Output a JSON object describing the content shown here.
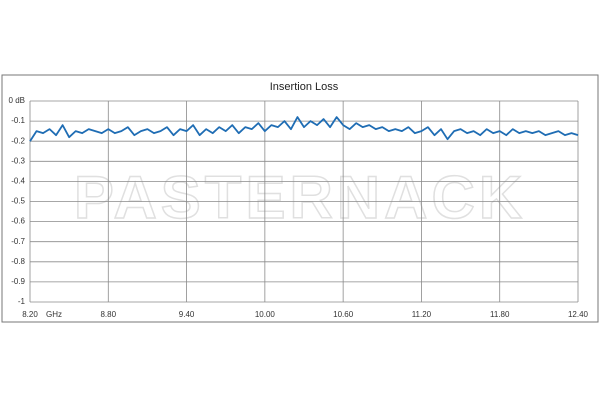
{
  "chart_data": {
    "type": "line",
    "title": "Insertion Loss",
    "watermark": "PASTERNACK",
    "x_label": "GHz",
    "x": [
      8.2,
      8.25,
      8.3,
      8.35,
      8.4,
      8.45,
      8.5,
      8.55,
      8.6,
      8.65,
      8.7,
      8.75,
      8.8,
      8.85,
      8.9,
      8.95,
      9.0,
      9.05,
      9.1,
      9.15,
      9.2,
      9.25,
      9.3,
      9.35,
      9.4,
      9.45,
      9.5,
      9.55,
      9.6,
      9.65,
      9.7,
      9.75,
      9.8,
      9.85,
      9.9,
      9.95,
      10.0,
      10.05,
      10.1,
      10.15,
      10.2,
      10.25,
      10.3,
      10.35,
      10.4,
      10.45,
      10.5,
      10.55,
      10.6,
      10.65,
      10.7,
      10.75,
      10.8,
      10.85,
      10.9,
      10.95,
      11.0,
      11.05,
      11.1,
      11.15,
      11.2,
      11.25,
      11.3,
      11.35,
      11.4,
      11.45,
      11.5,
      11.55,
      11.6,
      11.65,
      11.7,
      11.75,
      11.8,
      11.85,
      11.9,
      11.95,
      12.0,
      12.05,
      12.1,
      12.15,
      12.2,
      12.25,
      12.3,
      12.35,
      12.4
    ],
    "series": [
      {
        "color": "#1f6db4",
        "values": [
          -0.2,
          -0.15,
          -0.16,
          -0.14,
          -0.17,
          -0.12,
          -0.18,
          -0.15,
          -0.16,
          -0.14,
          -0.15,
          -0.16,
          -0.14,
          -0.16,
          -0.15,
          -0.13,
          -0.17,
          -0.15,
          -0.14,
          -0.16,
          -0.15,
          -0.13,
          -0.17,
          -0.14,
          -0.15,
          -0.12,
          -0.17,
          -0.14,
          -0.16,
          -0.13,
          -0.15,
          -0.12,
          -0.16,
          -0.13,
          -0.14,
          -0.11,
          -0.15,
          -0.12,
          -0.13,
          -0.1,
          -0.14,
          -0.08,
          -0.13,
          -0.1,
          -0.12,
          -0.09,
          -0.13,
          -0.08,
          -0.12,
          -0.14,
          -0.11,
          -0.13,
          -0.12,
          -0.14,
          -0.13,
          -0.15,
          -0.14,
          -0.15,
          -0.13,
          -0.16,
          -0.15,
          -0.13,
          -0.17,
          -0.14,
          -0.19,
          -0.15,
          -0.14,
          -0.16,
          -0.15,
          -0.17,
          -0.14,
          -0.16,
          -0.15,
          -0.17,
          -0.14,
          -0.16,
          -0.15,
          -0.16,
          -0.15,
          -0.17,
          -0.16,
          -0.15,
          -0.17,
          -0.16,
          -0.17
        ]
      }
    ],
    "xlim": [
      8.2,
      12.4
    ],
    "ylim": [
      -1,
      0
    ],
    "xticks": [
      {
        "value": 8.2,
        "label": "8.20"
      },
      {
        "value": 8.8,
        "label": "8.80"
      },
      {
        "value": 9.4,
        "label": "9.40"
      },
      {
        "value": 10.0,
        "label": "10.00"
      },
      {
        "value": 10.6,
        "label": "10.60"
      },
      {
        "value": 11.2,
        "label": "11.20"
      },
      {
        "value": 11.8,
        "label": "11.80"
      },
      {
        "value": 12.4,
        "label": "12.40"
      }
    ],
    "yticks": [
      {
        "value": 0,
        "label": "0 dB"
      },
      -0.1,
      -0.2,
      -0.3,
      -0.4,
      -0.5,
      -0.6,
      -0.7,
      -0.8,
      -0.9,
      -1
    ],
    "grid": true
  }
}
